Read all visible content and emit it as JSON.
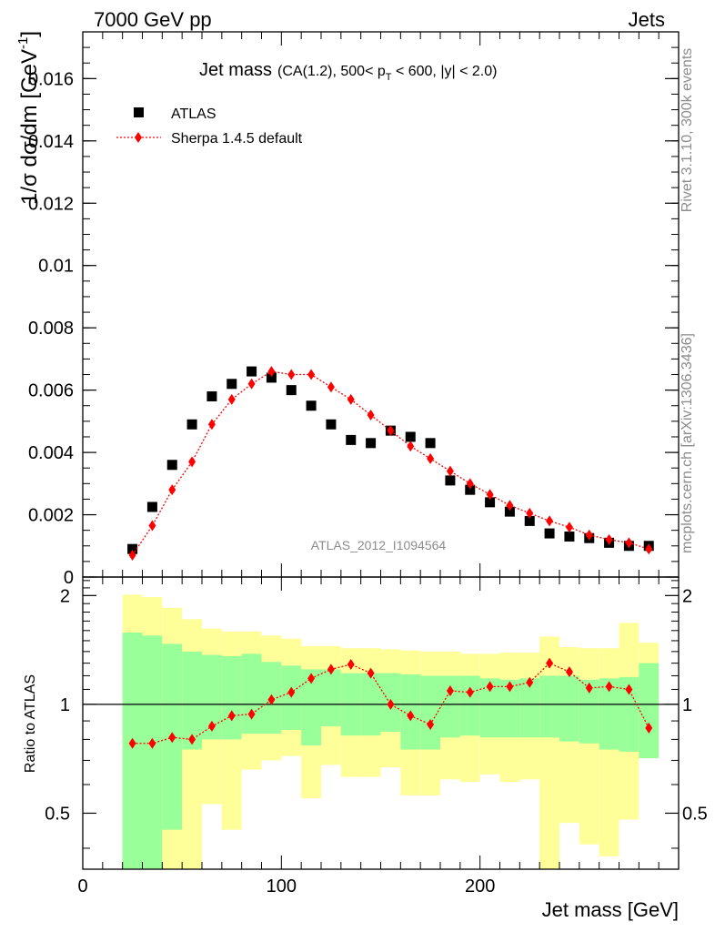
{
  "header": {
    "left": "7000 GeV pp",
    "right": "Jets"
  },
  "side_labels": {
    "rivet": "Rivet 3.1.10,  300k events",
    "mcplots": "mcplots.cern.ch [arXiv:1306.3436]"
  },
  "chart_data": {
    "type": "scatter",
    "title": "Jet mass",
    "subtitle_parts": {
      "prefix": "(CA(1.2), 500< p",
      "sub": "T",
      "suffix": " < 600, |y| < 2.0)"
    },
    "watermark": "ATLAS_2012_I1094564",
    "xlabel": "Jet mass [GeV]",
    "ylabel": "1/σ dσ/dm [GeV",
    "ylabel_sup": "-1",
    "ylabel_close": "]",
    "ratio_ylabel": "Ratio to ATLAS",
    "xlim": [
      0,
      300
    ],
    "ylim": [
      0,
      0.0175
    ],
    "ratio_ylim": [
      0.35,
      2.25
    ],
    "x_ticks": [
      0,
      100,
      200
    ],
    "x_tick_labels": [
      "0",
      "100",
      "200"
    ],
    "y_ticks": [
      0,
      0.002,
      0.004,
      0.006,
      0.008,
      0.01,
      0.012,
      0.014,
      0.016
    ],
    "y_tick_labels": [
      "0",
      "0.002",
      "0.004",
      "0.006",
      "0.008",
      "0.01",
      "0.012",
      "0.014",
      "0.016"
    ],
    "ratio_ticks": [
      0.5,
      1,
      2
    ],
    "ratio_tick_labels": [
      "0.5",
      "1",
      "2"
    ],
    "bin_edges": [
      20,
      30,
      40,
      50,
      60,
      70,
      80,
      90,
      100,
      110,
      120,
      130,
      140,
      150,
      160,
      170,
      180,
      190,
      200,
      210,
      220,
      230,
      240,
      250,
      260,
      270,
      280,
      290
    ],
    "x": [
      25,
      35,
      45,
      55,
      65,
      75,
      85,
      95,
      105,
      115,
      125,
      135,
      145,
      155,
      165,
      175,
      185,
      195,
      205,
      215,
      225,
      235,
      245,
      255,
      265,
      275,
      285
    ],
    "series": [
      {
        "name": "ATLAS",
        "marker": "square",
        "color": "#000000",
        "values": [
          0.0009,
          0.00225,
          0.0036,
          0.0049,
          0.0058,
          0.0062,
          0.0066,
          0.0064,
          0.006,
          0.0055,
          0.0049,
          0.0044,
          0.0043,
          0.0047,
          0.0045,
          0.0043,
          0.0031,
          0.0028,
          0.0024,
          0.0021,
          0.0018,
          0.0014,
          0.0013,
          0.00125,
          0.0011,
          0.001,
          0.001
        ]
      },
      {
        "name": "Sherpa 1.4.5 default",
        "marker": "diamond",
        "color": "#ff0000",
        "values": [
          0.0007,
          0.00165,
          0.0028,
          0.0037,
          0.0049,
          0.0057,
          0.0062,
          0.0066,
          0.0065,
          0.0065,
          0.0061,
          0.0057,
          0.0052,
          0.0047,
          0.0042,
          0.0038,
          0.0034,
          0.003,
          0.00265,
          0.0023,
          0.00205,
          0.0018,
          0.0016,
          0.00135,
          0.0012,
          0.0011,
          0.0009
        ]
      }
    ],
    "ratio": [
      0.78,
      0.78,
      0.81,
      0.8,
      0.87,
      0.93,
      0.94,
      1.03,
      1.08,
      1.18,
      1.25,
      1.29,
      1.22,
      1.0,
      0.93,
      0.88,
      1.09,
      1.08,
      1.12,
      1.12,
      1.15,
      1.3,
      1.23,
      1.11,
      1.12,
      1.1,
      0.86
    ],
    "band_inner": {
      "color": "#99ff99",
      "upper": [
        1.58,
        1.55,
        1.47,
        1.4,
        1.37,
        1.36,
        1.38,
        1.31,
        1.28,
        1.25,
        1.25,
        1.22,
        1.22,
        1.22,
        1.21,
        1.2,
        1.2,
        1.2,
        1.18,
        1.17,
        1.18,
        1.2,
        1.2,
        1.17,
        1.18,
        1.19,
        1.3
      ],
      "lower": [
        0.1,
        0.1,
        0.45,
        0.75,
        0.8,
        0.8,
        0.83,
        0.83,
        0.85,
        0.77,
        0.87,
        0.82,
        0.82,
        0.84,
        0.75,
        0.75,
        0.81,
        0.82,
        0.81,
        0.81,
        0.81,
        0.81,
        0.79,
        0.78,
        0.75,
        0.74,
        0.71
      ]
    },
    "band_outer": {
      "color": "#ffff99",
      "upper": [
        2.01,
        1.98,
        1.85,
        1.72,
        1.62,
        1.59,
        1.59,
        1.55,
        1.52,
        1.45,
        1.45,
        1.43,
        1.43,
        1.42,
        1.41,
        1.4,
        1.4,
        1.38,
        1.38,
        1.39,
        1.39,
        1.54,
        1.44,
        1.43,
        1.43,
        1.68,
        1.48
      ],
      "lower": [
        0.1,
        0.1,
        0.1,
        0.1,
        0.53,
        0.45,
        0.66,
        0.7,
        0.72,
        0.55,
        0.68,
        0.63,
        0.63,
        0.67,
        0.56,
        0.56,
        0.62,
        0.61,
        0.64,
        0.61,
        0.62,
        0.1,
        0.47,
        0.41,
        0.38,
        0.48,
        0.71
      ]
    }
  }
}
